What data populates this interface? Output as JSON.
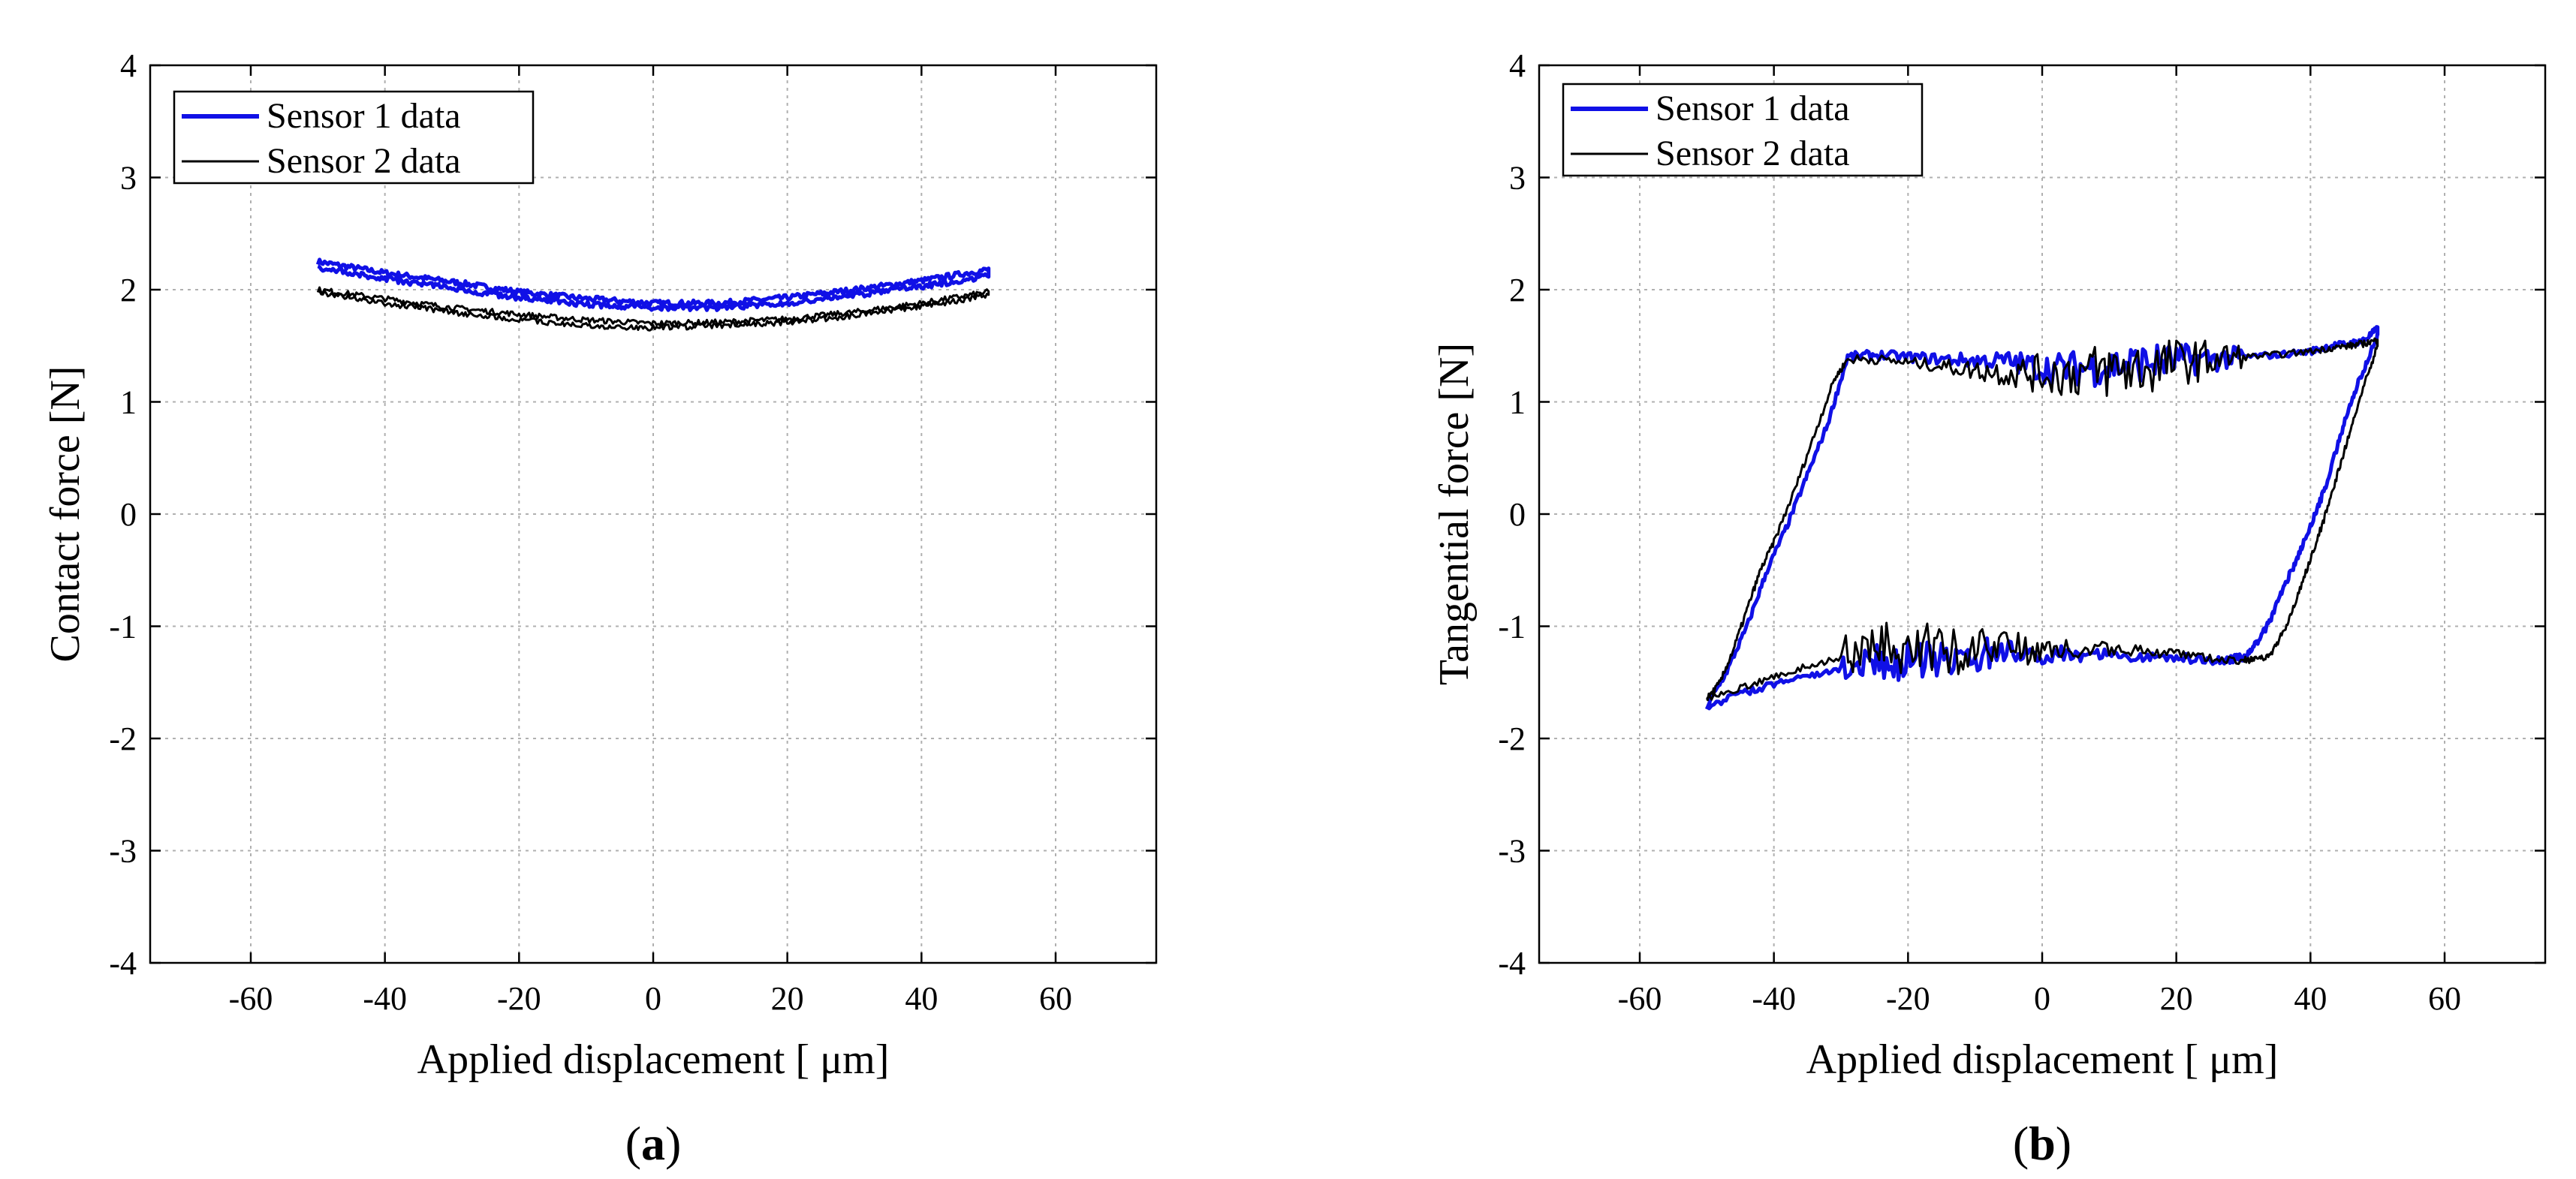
{
  "chart_data": [
    {
      "type": "line",
      "panel_label": "a",
      "xlabel": "Applied displacement [ μm]",
      "ylabel": "Contact force [N]",
      "xlim": [
        -75,
        75
      ],
      "ylim": [
        -4,
        4
      ],
      "xticks": [
        -60,
        -40,
        -20,
        0,
        20,
        40,
        60
      ],
      "yticks": [
        -4,
        -3,
        -2,
        -1,
        0,
        1,
        2,
        3,
        4
      ],
      "grid": true,
      "legend_position": "top-left",
      "series": [
        {
          "name": "Sensor 1 data",
          "color": "#1010e6",
          "x": [
            -50,
            -40,
            -30,
            -20,
            -10,
            0,
            10,
            20,
            30,
            40,
            50
          ],
          "y_upper": [
            2.25,
            2.15,
            2.07,
            1.98,
            1.92,
            1.88,
            1.88,
            1.93,
            2.0,
            2.08,
            2.18
          ],
          "y_lower": [
            2.2,
            2.1,
            2.01,
            1.93,
            1.87,
            1.84,
            1.84,
            1.88,
            1.95,
            2.03,
            2.12
          ]
        },
        {
          "name": "Sensor 2 data",
          "color": "#000000",
          "x": [
            -50,
            -40,
            -30,
            -20,
            -10,
            0,
            10,
            20,
            30,
            40,
            50
          ],
          "y_upper": [
            2.0,
            1.92,
            1.84,
            1.78,
            1.73,
            1.7,
            1.71,
            1.74,
            1.8,
            1.88,
            1.98
          ],
          "y_lower": [
            1.97,
            1.88,
            1.8,
            1.73,
            1.68,
            1.66,
            1.68,
            1.71,
            1.77,
            1.85,
            1.95
          ]
        }
      ]
    },
    {
      "type": "line",
      "panel_label": "b",
      "xlabel": "Applied displacement [ μm]",
      "ylabel": "Tangential force [N]",
      "xlim": [
        -75,
        75
      ],
      "ylim": [
        -4,
        4
      ],
      "xticks": [
        -60,
        -40,
        -20,
        0,
        20,
        40,
        60
      ],
      "yticks": [
        -4,
        -3,
        -2,
        -1,
        0,
        1,
        2,
        3,
        4
      ],
      "grid": true,
      "legend_position": "top-left",
      "series": [
        {
          "name": "Sensor 1 data",
          "color": "#1010e6",
          "loop_x": [
            -50,
            -47,
            -44,
            -41,
            -38,
            -35,
            -32,
            -29,
            -25,
            -20,
            -15,
            -10,
            -5,
            0,
            5,
            10,
            15,
            20,
            25,
            30,
            35,
            40,
            43,
            46,
            48,
            50,
            50,
            48,
            46,
            44,
            42,
            40,
            38,
            36,
            34,
            32,
            30,
            28,
            25,
            20,
            15,
            10,
            5,
            0,
            -5,
            -10,
            -15,
            -20,
            -25,
            -30,
            -35,
            -40,
            -45,
            -50
          ],
          "loop_y": [
            -1.72,
            -1.4,
            -1.0,
            -0.5,
            -0.1,
            0.35,
            0.8,
            1.4,
            1.42,
            1.4,
            1.38,
            1.37,
            1.36,
            1.3,
            1.3,
            1.32,
            1.35,
            1.37,
            1.38,
            1.4,
            1.42,
            1.45,
            1.5,
            1.52,
            1.55,
            1.65,
            1.6,
            1.3,
            1.0,
            0.6,
            0.2,
            -0.1,
            -0.4,
            -0.65,
            -0.95,
            -1.15,
            -1.28,
            -1.3,
            -1.3,
            -1.28,
            -1.27,
            -1.25,
            -1.25,
            -1.25,
            -1.25,
            -1.25,
            -1.27,
            -1.3,
            -1.33,
            -1.38,
            -1.45,
            -1.52,
            -1.6,
            -1.72
          ]
        },
        {
          "name": "Sensor 2 data",
          "color": "#000000",
          "loop_x": [
            -50,
            -48,
            -46,
            -44,
            -42,
            -40,
            -37,
            -34,
            -31,
            -29,
            -25,
            -20,
            -15,
            -10,
            -5,
            0,
            5,
            10,
            15,
            20,
            25,
            30,
            35,
            40,
            43,
            46,
            48,
            50,
            50,
            48,
            46,
            44,
            42,
            40,
            38,
            36,
            34,
            32,
            30,
            25,
            20,
            15,
            10,
            5,
            0,
            -5,
            -10,
            -15,
            -20,
            -25,
            -30,
            -35,
            -40,
            -45,
            -50
          ],
          "loop_y": [
            -1.65,
            -1.5,
            -1.2,
            -0.85,
            -0.5,
            -0.25,
            0.2,
            0.7,
            1.2,
            1.38,
            1.38,
            1.35,
            1.32,
            1.28,
            1.26,
            1.25,
            1.26,
            1.28,
            1.3,
            1.35,
            1.38,
            1.4,
            1.42,
            1.45,
            1.48,
            1.5,
            1.52,
            1.55,
            1.5,
            1.15,
            0.75,
            0.35,
            -0.05,
            -0.4,
            -0.75,
            -1.05,
            -1.25,
            -1.3,
            -1.3,
            -1.28,
            -1.25,
            -1.22,
            -1.2,
            -1.2,
            -1.2,
            -1.2,
            -1.2,
            -1.2,
            -1.2,
            -1.2,
            -1.28,
            -1.35,
            -1.45,
            -1.55,
            -1.65
          ]
        }
      ]
    }
  ]
}
